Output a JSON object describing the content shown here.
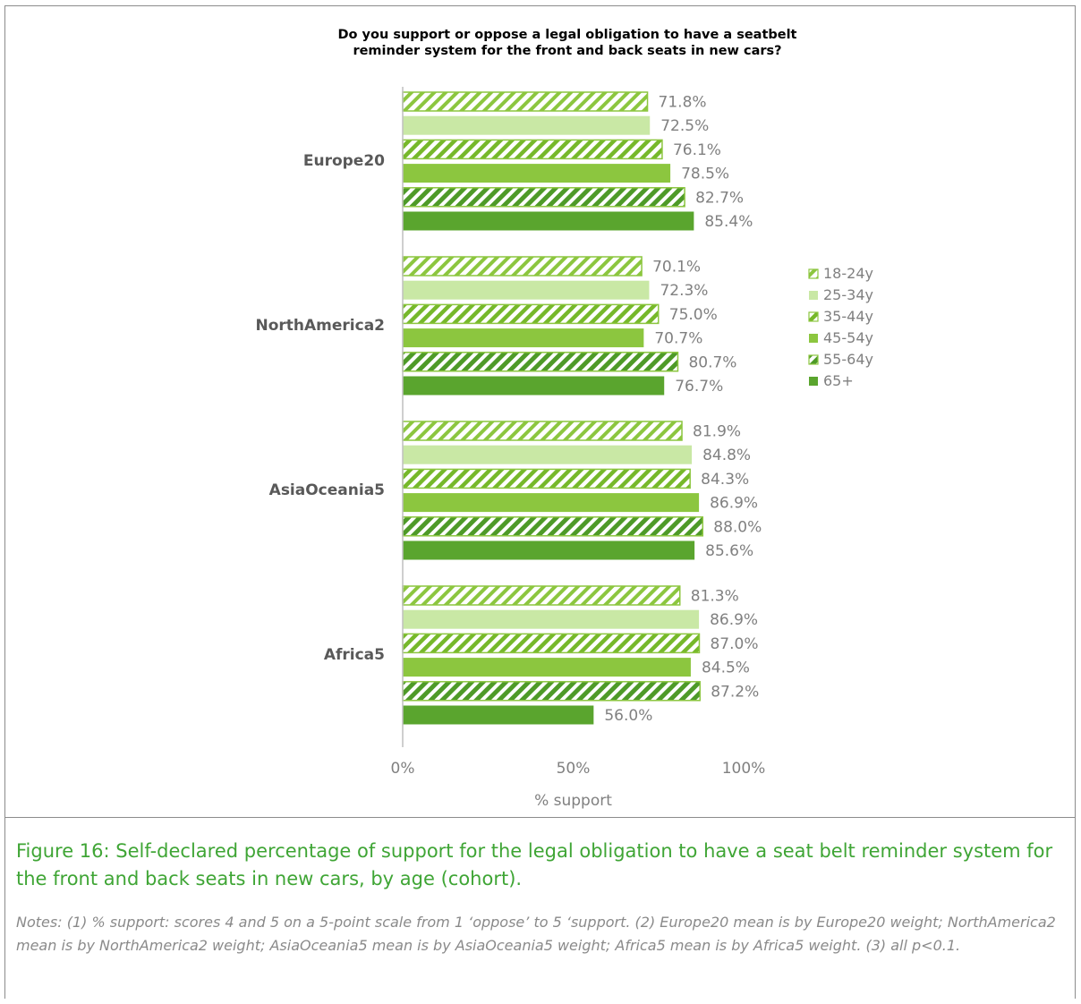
{
  "chart_data": {
    "type": "bar",
    "orientation": "horizontal",
    "title": "Do you support or oppose a legal obligation to have a seatbelt reminder system for the front and back seats in new cars?",
    "title_lines": [
      "Do you support or oppose a legal obligation to have a seatbelt",
      "reminder system for the front and back seats in new cars?"
    ],
    "categories": [
      "Europe20",
      "NorthAmerica2",
      "AsiaOceania5",
      "Africa5"
    ],
    "series": [
      {
        "name": "18-24y",
        "values": [
          71.8,
          70.1,
          81.9,
          81.3
        ],
        "labels": [
          "71.8%",
          "70.1%",
          "81.9%",
          "81.3%"
        ],
        "color": "#a5d86c",
        "pattern": "hatch-light"
      },
      {
        "name": "25-34y",
        "values": [
          72.5,
          72.3,
          84.8,
          86.9
        ],
        "labels": [
          "72.5%",
          "72.3%",
          "84.8%",
          "86.9%"
        ],
        "color": "#c9e8a5",
        "pattern": "solid"
      },
      {
        "name": "35-44y",
        "values": [
          76.1,
          75.0,
          84.3,
          87.0
        ],
        "labels": [
          "76.1%",
          "75.0%",
          "84.3%",
          "87.0%"
        ],
        "color": "#8cc63f",
        "pattern": "hatch-medium"
      },
      {
        "name": "45-54y",
        "values": [
          78.5,
          70.7,
          86.9,
          84.5
        ],
        "labels": [
          "78.5%",
          "70.7%",
          "86.9%",
          "84.5%"
        ],
        "color": "#8cc63f",
        "pattern": "solid"
      },
      {
        "name": "55-64y",
        "values": [
          82.7,
          80.7,
          88.0,
          87.2
        ],
        "labels": [
          "82.7%",
          "80.7%",
          "88.0%",
          "87.2%"
        ],
        "color": "#5aa52e",
        "pattern": "hatch-dark"
      },
      {
        "name": "65+",
        "values": [
          85.4,
          76.7,
          85.6,
          56.0
        ],
        "labels": [
          "85.4%",
          "76.7%",
          "85.6%",
          "56.0%"
        ],
        "color": "#5aa52e",
        "pattern": "solid"
      }
    ],
    "xlabel": "% support",
    "ylabel": "",
    "xlim": [
      0,
      100
    ],
    "x_ticks": [
      0,
      50,
      100
    ],
    "x_tick_labels": [
      "0%",
      "50%",
      "100%"
    ],
    "grid": false,
    "legend_position": "right"
  },
  "caption": "Figure 16: Self-declared percentage of support for the legal obligation to have a seat belt reminder system for the front and back seats in new cars, by age (cohort).",
  "notes": "Notes: (1) % support: scores 4 and 5 on a 5-point scale from 1 ‘oppose’ to 5 ‘support. (2) Europe20 mean is by Europe20 weight; NorthAmerica2 mean is by NorthAmerica2 weight; AsiaOceania5 mean is by AsiaOceania5 weight; Africa5 mean is by Africa5 weight. (3) all p<0.1."
}
